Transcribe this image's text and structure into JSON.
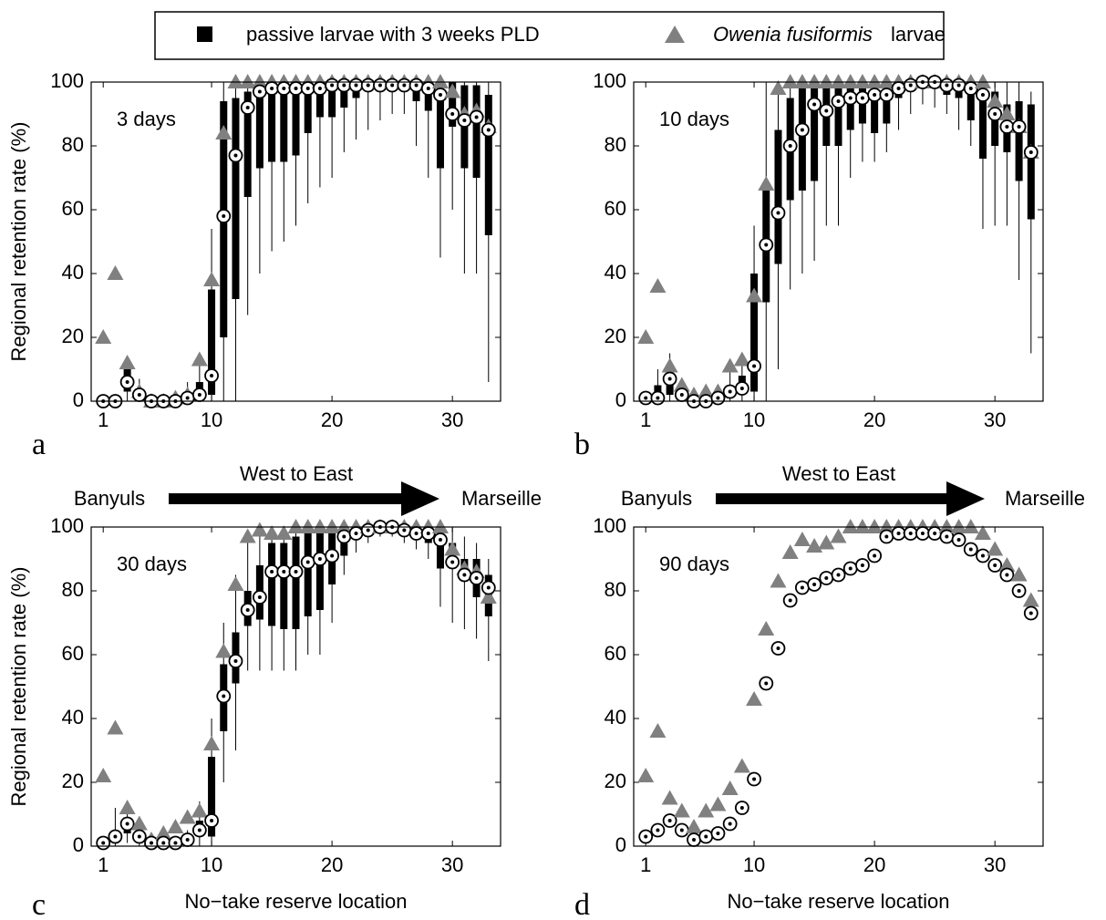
{
  "legend": {
    "passive": "passive larvae with 3 weeks PLD",
    "owenia_species": "Owenia fusiformis",
    "owenia_suffix": "larvae"
  },
  "direction": {
    "arrow": "West to East",
    "west": "Banyuls",
    "east": "Marseille"
  },
  "chart_data": [
    {
      "type": "box",
      "panel_label": "a",
      "annotation": "3 days",
      "ylabel": "Regional retention rate (%)",
      "xlim": [
        0,
        34
      ],
      "ylim": [
        0,
        100
      ],
      "xticks": [
        1,
        10,
        20,
        30
      ],
      "yticks": [
        0,
        20,
        40,
        60,
        80,
        100
      ],
      "box_color": "#000000",
      "owenia_color": "#808080",
      "x": [
        1,
        2,
        3,
        4,
        5,
        6,
        7,
        8,
        9,
        10,
        11,
        12,
        13,
        14,
        15,
        16,
        17,
        18,
        19,
        20,
        21,
        22,
        23,
        24,
        25,
        26,
        27,
        28,
        29,
        30,
        31,
        32,
        33
      ],
      "median": [
        0,
        0,
        6,
        2,
        0,
        0,
        0,
        1,
        2,
        8,
        58,
        77,
        92,
        97,
        98,
        98,
        98,
        98,
        98,
        99,
        99,
        99,
        99,
        99,
        99,
        99,
        99,
        98,
        96,
        90,
        88,
        89,
        85
      ],
      "q1": [
        0,
        0,
        3,
        1,
        0,
        0,
        0,
        0,
        1,
        2,
        20,
        32,
        64,
        73,
        75,
        75,
        77,
        84,
        89,
        89,
        92,
        95,
        97,
        98,
        98,
        98,
        94,
        91,
        73,
        86,
        73,
        70,
        52
      ],
      "q3": [
        0,
        1,
        10,
        4,
        1,
        1,
        1,
        2,
        6,
        35,
        94,
        95,
        97,
        99,
        99,
        99,
        99,
        99,
        100,
        100,
        100,
        100,
        100,
        100,
        100,
        100,
        100,
        100,
        99,
        100,
        99,
        99,
        96
      ],
      "whislo": [
        0,
        0,
        0,
        0,
        0,
        0,
        0,
        0,
        0,
        0,
        0,
        0,
        27,
        40,
        47,
        50,
        55,
        62,
        67,
        70,
        78,
        82,
        85,
        88,
        90,
        90,
        80,
        70,
        45,
        60,
        40,
        40,
        6
      ],
      "whishi": [
        0,
        2,
        14,
        7,
        2,
        2,
        2,
        6,
        15,
        54,
        100,
        100,
        100,
        100,
        100,
        100,
        100,
        100,
        100,
        100,
        100,
        100,
        100,
        100,
        100,
        100,
        100,
        100,
        100,
        100,
        100,
        100,
        100
      ],
      "owenia": [
        20,
        40,
        12,
        3,
        0,
        0,
        1,
        2,
        13,
        38,
        84,
        100,
        100,
        100,
        100,
        100,
        100,
        100,
        100,
        100,
        100,
        100,
        100,
        100,
        100,
        100,
        100,
        100,
        100,
        97,
        90,
        91,
        86
      ]
    },
    {
      "type": "box",
      "panel_label": "b",
      "annotation": "10 days",
      "xlim": [
        0,
        34
      ],
      "ylim": [
        0,
        100
      ],
      "xticks": [
        1,
        10,
        20,
        30
      ],
      "yticks": [
        0,
        20,
        40,
        60,
        80,
        100
      ],
      "box_color": "#000000",
      "owenia_color": "#808080",
      "x": [
        1,
        2,
        3,
        4,
        5,
        6,
        7,
        8,
        9,
        10,
        11,
        12,
        13,
        14,
        15,
        16,
        17,
        18,
        19,
        20,
        21,
        22,
        23,
        24,
        25,
        26,
        27,
        28,
        29,
        30,
        31,
        32,
        33
      ],
      "median": [
        1,
        1,
        7,
        2,
        0,
        0,
        1,
        3,
        4,
        11,
        49,
        59,
        80,
        85,
        93,
        91,
        94,
        95,
        95,
        96,
        96,
        98,
        99,
        100,
        100,
        99,
        99,
        98,
        96,
        90,
        86,
        86,
        78
      ],
      "q1": [
        0,
        0,
        2,
        0,
        0,
        0,
        0,
        1,
        2,
        3,
        31,
        43,
        63,
        66,
        69,
        80,
        80,
        85,
        87,
        84,
        87,
        95,
        97,
        98,
        98,
        96,
        95,
        88,
        76,
        80,
        78,
        69,
        57
      ],
      "q3": [
        1,
        5,
        9,
        4,
        1,
        1,
        1,
        5,
        8,
        40,
        68,
        85,
        95,
        99,
        99,
        99,
        99,
        99,
        99,
        99,
        99,
        100,
        100,
        100,
        100,
        100,
        100,
        100,
        99,
        97,
        93,
        94,
        93
      ],
      "whislo": [
        0,
        0,
        0,
        0,
        0,
        0,
        0,
        0,
        0,
        0,
        0,
        10,
        35,
        40,
        44,
        55,
        55,
        70,
        75,
        75,
        78,
        85,
        90,
        93,
        92,
        90,
        85,
        80,
        54,
        55,
        55,
        38,
        15
      ],
      "whishi": [
        2,
        10,
        15,
        7,
        3,
        3,
        3,
        9,
        15,
        55,
        100,
        100,
        100,
        100,
        100,
        100,
        100,
        100,
        100,
        100,
        100,
        100,
        100,
        100,
        100,
        100,
        100,
        100,
        100,
        100,
        100,
        100,
        97
      ],
      "owenia": [
        20,
        36,
        11,
        5,
        2,
        3,
        3,
        11,
        13,
        33,
        68,
        98,
        100,
        100,
        100,
        100,
        100,
        100,
        100,
        100,
        100,
        100,
        100,
        100,
        100,
        100,
        100,
        100,
        100,
        94,
        90,
        86,
        78
      ]
    },
    {
      "type": "box",
      "panel_label": "c",
      "annotation": "30 days",
      "ylabel": "Regional retention rate (%)",
      "xlabel": "No−take reserve location",
      "xlim": [
        0,
        34
      ],
      "ylim": [
        0,
        100
      ],
      "xticks": [
        1,
        10,
        20,
        30
      ],
      "yticks": [
        0,
        20,
        40,
        60,
        80,
        100
      ],
      "box_color": "#000000",
      "owenia_color": "#808080",
      "x": [
        1,
        2,
        3,
        4,
        5,
        6,
        7,
        8,
        9,
        10,
        11,
        12,
        13,
        14,
        15,
        16,
        17,
        18,
        19,
        20,
        21,
        22,
        23,
        24,
        25,
        26,
        27,
        28,
        29,
        30,
        31,
        32,
        33
      ],
      "median": [
        1,
        3,
        7,
        3,
        1,
        1,
        1,
        2,
        5,
        8,
        47,
        58,
        74,
        78,
        86,
        86,
        86,
        89,
        90,
        91,
        97,
        98,
        99,
        100,
        100,
        99,
        98,
        98,
        96,
        89,
        85,
        84,
        81
      ],
      "q1": [
        0,
        1,
        4,
        1,
        0,
        0,
        0,
        1,
        3,
        3,
        36,
        51,
        69,
        71,
        69,
        68,
        68,
        72,
        74,
        82,
        91,
        97,
        98,
        99,
        99,
        98,
        97,
        95,
        87,
        87,
        83,
        78,
        72
      ],
      "q3": [
        2,
        5,
        9,
        4,
        1,
        1,
        2,
        3,
        8,
        28,
        57,
        67,
        80,
        88,
        95,
        95,
        97,
        99,
        99,
        99,
        100,
        100,
        100,
        100,
        100,
        100,
        100,
        100,
        99,
        95,
        90,
        90,
        85
      ],
      "whislo": [
        0,
        0,
        1,
        0,
        0,
        0,
        0,
        0,
        0,
        0,
        20,
        30,
        55,
        55,
        55,
        55,
        55,
        60,
        60,
        70,
        85,
        92,
        95,
        97,
        97,
        95,
        93,
        90,
        75,
        70,
        68,
        65,
        58
      ],
      "whishi": [
        3,
        12,
        14,
        6,
        2,
        3,
        3,
        5,
        14,
        40,
        70,
        85,
        95,
        100,
        100,
        100,
        100,
        100,
        100,
        100,
        100,
        100,
        100,
        100,
        100,
        100,
        100,
        100,
        100,
        100,
        97,
        95,
        90
      ],
      "owenia": [
        22,
        37,
        12,
        7,
        2,
        4,
        6,
        9,
        11,
        32,
        61,
        82,
        97,
        99,
        98,
        98,
        100,
        100,
        100,
        100,
        100,
        100,
        100,
        100,
        100,
        100,
        100,
        100,
        100,
        93,
        87,
        86,
        78
      ]
    },
    {
      "type": "box",
      "panel_label": "d",
      "annotation": "90 days",
      "xlabel": "No−take reserve location",
      "xlim": [
        0,
        34
      ],
      "ylim": [
        0,
        100
      ],
      "xticks": [
        1,
        10,
        20,
        30
      ],
      "yticks": [
        0,
        20,
        40,
        60,
        80,
        100
      ],
      "box_color": "#000000",
      "owenia_color": "#808080",
      "x": [
        1,
        2,
        3,
        4,
        5,
        6,
        7,
        8,
        9,
        10,
        11,
        12,
        13,
        14,
        15,
        16,
        17,
        18,
        19,
        20,
        21,
        22,
        23,
        24,
        25,
        26,
        27,
        28,
        29,
        30,
        31,
        32,
        33
      ],
      "median": [
        3,
        5,
        8,
        5,
        2,
        3,
        4,
        7,
        12,
        21,
        51,
        62,
        77,
        81,
        82,
        84,
        85,
        87,
        88,
        91,
        97,
        98,
        98,
        98,
        98,
        97,
        96,
        93,
        91,
        88,
        85,
        80,
        73
      ],
      "owenia": [
        22,
        36,
        15,
        11,
        6,
        11,
        13,
        18,
        25,
        46,
        68,
        83,
        92,
        96,
        94,
        95,
        97,
        100,
        100,
        100,
        100,
        100,
        100,
        100,
        100,
        100,
        100,
        100,
        98,
        93,
        88,
        85,
        77
      ]
    }
  ]
}
